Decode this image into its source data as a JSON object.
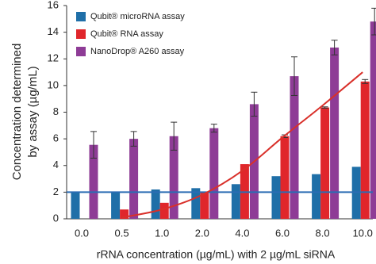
{
  "chart_data": {
    "type": "bar",
    "y_label": [
      "Concentration determined",
      "by assay (µg/mL)"
    ],
    "x_label": "rRNA concentration (µg/mL) with 2 µg/mL siRNA",
    "categories": [
      "0.0",
      "0.5",
      "1.0",
      "2.0",
      "4.0",
      "6.0",
      "8.0",
      "10.0"
    ],
    "series": [
      {
        "name": "Qubit® microRNA assay",
        "color": "#1f6fa8",
        "values": [
          2.0,
          2.0,
          2.2,
          2.3,
          2.6,
          3.2,
          3.35,
          3.9
        ],
        "errors": [
          0,
          0,
          0,
          0,
          0,
          0,
          0,
          0
        ]
      },
      {
        "name": "Qubit® RNA assay",
        "color": "#e0262b",
        "values": [
          0,
          0.7,
          1.2,
          2.0,
          4.1,
          6.2,
          8.35,
          10.3
        ],
        "errors": [
          0,
          0,
          0,
          0,
          0,
          0.1,
          0.05,
          0.15
        ]
      },
      {
        "name": "NanoDrop® A260 assay",
        "color": "#8e3c96",
        "values": [
          5.55,
          6.0,
          6.2,
          6.8,
          8.6,
          10.7,
          12.85,
          14.8
        ],
        "errors": [
          1.0,
          0.55,
          1.05,
          0.3,
          0.9,
          1.45,
          0.55,
          1.0
        ]
      }
    ],
    "reference_line": {
      "value": 2,
      "color": "#2a6cb3"
    },
    "trend_line": {
      "color": "#d9302a",
      "values": [
        null,
        0.1,
        0.7,
        1.8,
        3.6,
        6.1,
        8.5,
        11.0
      ]
    },
    "ylim": [
      0,
      16
    ],
    "yticks": [
      0,
      2,
      4,
      6,
      8,
      10,
      12,
      14,
      16
    ],
    "grid": false,
    "legend": "upper-left"
  }
}
